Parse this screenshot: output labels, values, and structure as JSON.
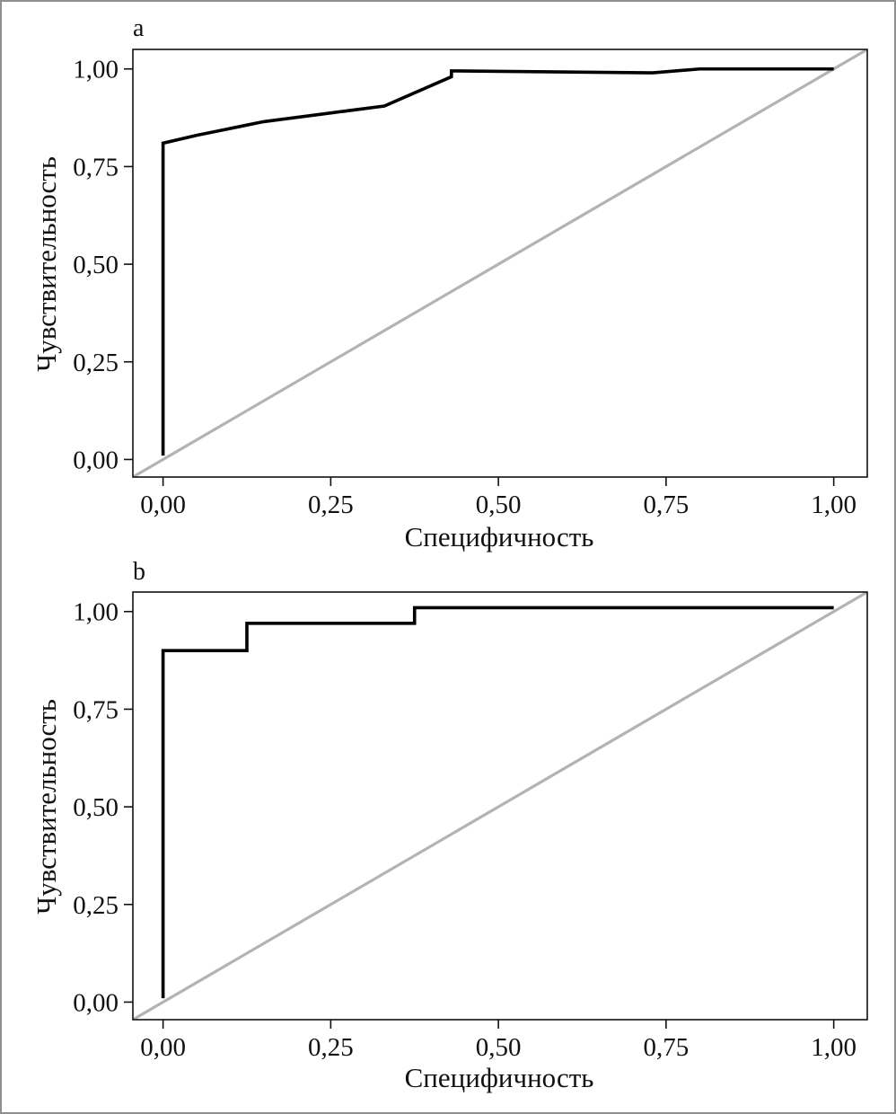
{
  "chart_data": [
    {
      "type": "line",
      "panel_label": "a",
      "xlabel": "Специфичность",
      "ylabel": "Чувствительность",
      "xlim": [
        -0.045,
        1.05
      ],
      "ylim": [
        -0.045,
        1.05
      ],
      "x_ticks": [
        0,
        0.25,
        0.5,
        0.75,
        1
      ],
      "x_tick_labels": [
        "0,00",
        "0,25",
        "0,50",
        "0,75",
        "1,00"
      ],
      "y_ticks": [
        0,
        0.25,
        0.5,
        0.75,
        1
      ],
      "y_tick_labels": [
        "0,00",
        "0,25",
        "0,50",
        "0,75",
        "1,00"
      ],
      "grid": false,
      "series": [
        {
          "color": "#000000",
          "x": [
            0,
            0,
            0.05,
            0.15,
            0.33,
            0.43,
            0.43,
            0.73,
            0.8,
            1.0
          ],
          "y": [
            0.01,
            0.81,
            0.83,
            0.865,
            0.905,
            0.98,
            0.995,
            0.99,
            1.0,
            1.0
          ]
        },
        {
          "color": "#b3b3b3",
          "x": [
            -0.045,
            1.05
          ],
          "y": [
            -0.045,
            1.05
          ]
        }
      ]
    },
    {
      "type": "line",
      "panel_label": "b",
      "xlabel": "Специфичность",
      "ylabel": "Чувствительность",
      "xlim": [
        -0.045,
        1.05
      ],
      "ylim": [
        -0.045,
        1.05
      ],
      "x_ticks": [
        0,
        0.25,
        0.5,
        0.75,
        1
      ],
      "x_tick_labels": [
        "0,00",
        "0,25",
        "0,50",
        "0,75",
        "1,00"
      ],
      "y_ticks": [
        0,
        0.25,
        0.5,
        0.75,
        1
      ],
      "y_tick_labels": [
        "0,00",
        "0,25",
        "0,50",
        "0,75",
        "1,00"
      ],
      "grid": false,
      "series": [
        {
          "color": "#000000",
          "x": [
            0,
            0,
            0.125,
            0.125,
            0.375,
            0.375,
            1.0
          ],
          "y": [
            0.01,
            0.9,
            0.9,
            0.97,
            0.97,
            1.01,
            1.01
          ]
        },
        {
          "color": "#b3b3b3",
          "x": [
            -0.045,
            1.05
          ],
          "y": [
            -0.045,
            1.05
          ]
        }
      ]
    }
  ]
}
